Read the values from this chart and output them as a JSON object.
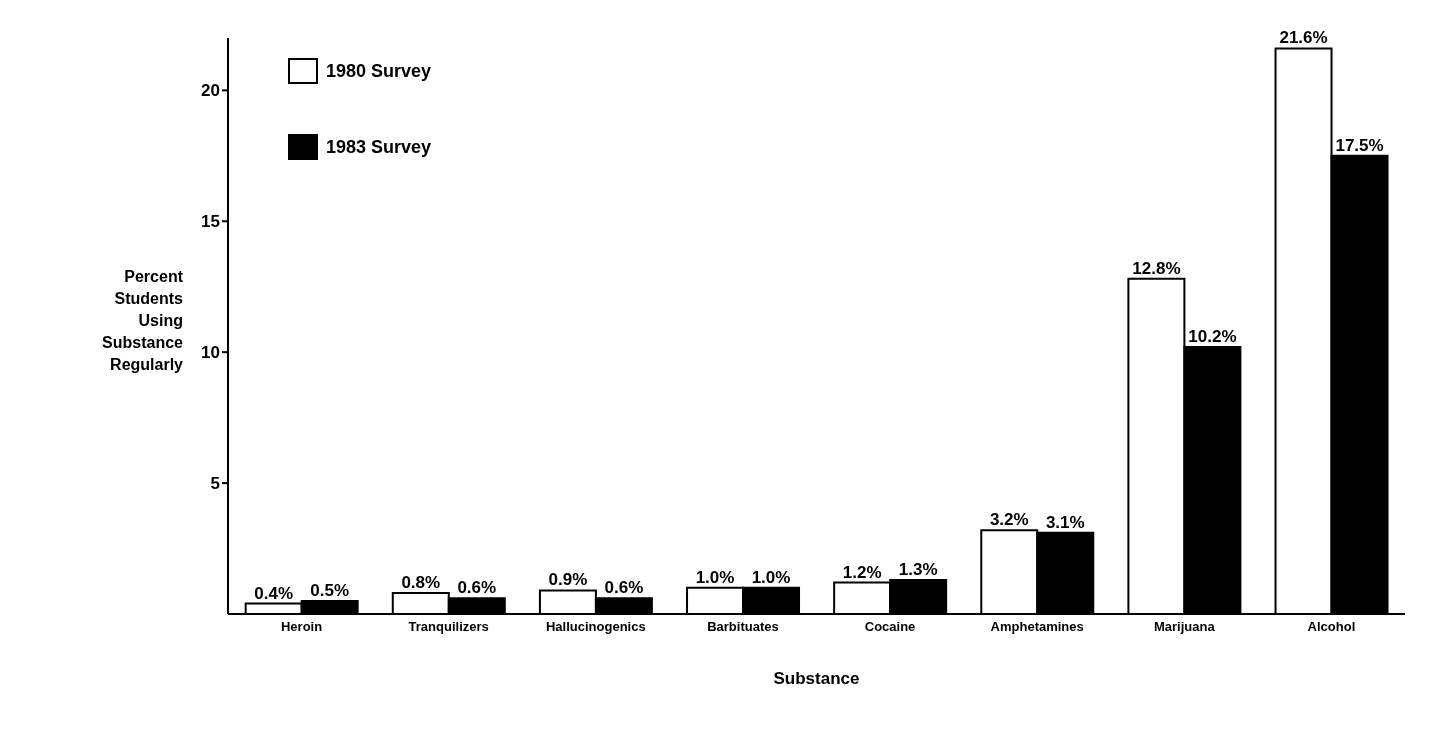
{
  "chart_data": {
    "type": "bar",
    "xlabel": "Substance",
    "ylabel": "Percent Students Using Substance Regularly",
    "categories": [
      "Heroin",
      "Tranquilizers",
      "Hallucinogenics",
      "Barbituates",
      "Cocaine",
      "Amphetamines",
      "Marijuana",
      "Alcohol"
    ],
    "series": [
      {
        "name": "1980 Survey",
        "color": "#ffffff",
        "values": [
          0.4,
          0.8,
          0.9,
          1.0,
          1.2,
          3.2,
          12.8,
          21.6
        ],
        "value_labels": [
          "0.4%",
          "0.8%",
          "0.9%",
          "1.0%",
          "1.2%",
          "3.2%",
          "12.8%",
          "21.6%"
        ]
      },
      {
        "name": "1983 Survey",
        "color": "#000000",
        "values": [
          0.5,
          0.6,
          0.6,
          1.0,
          1.3,
          3.1,
          10.2,
          17.5
        ],
        "value_labels": [
          "0.5%",
          "0.6%",
          "0.6%",
          "1.0%",
          "1.3%",
          "3.1%",
          "10.2%",
          "17.5%"
        ]
      }
    ],
    "ylim": [
      0,
      22
    ],
    "yticks": [
      5,
      10,
      15,
      20
    ],
    "grid": false,
    "legend": "top left"
  }
}
